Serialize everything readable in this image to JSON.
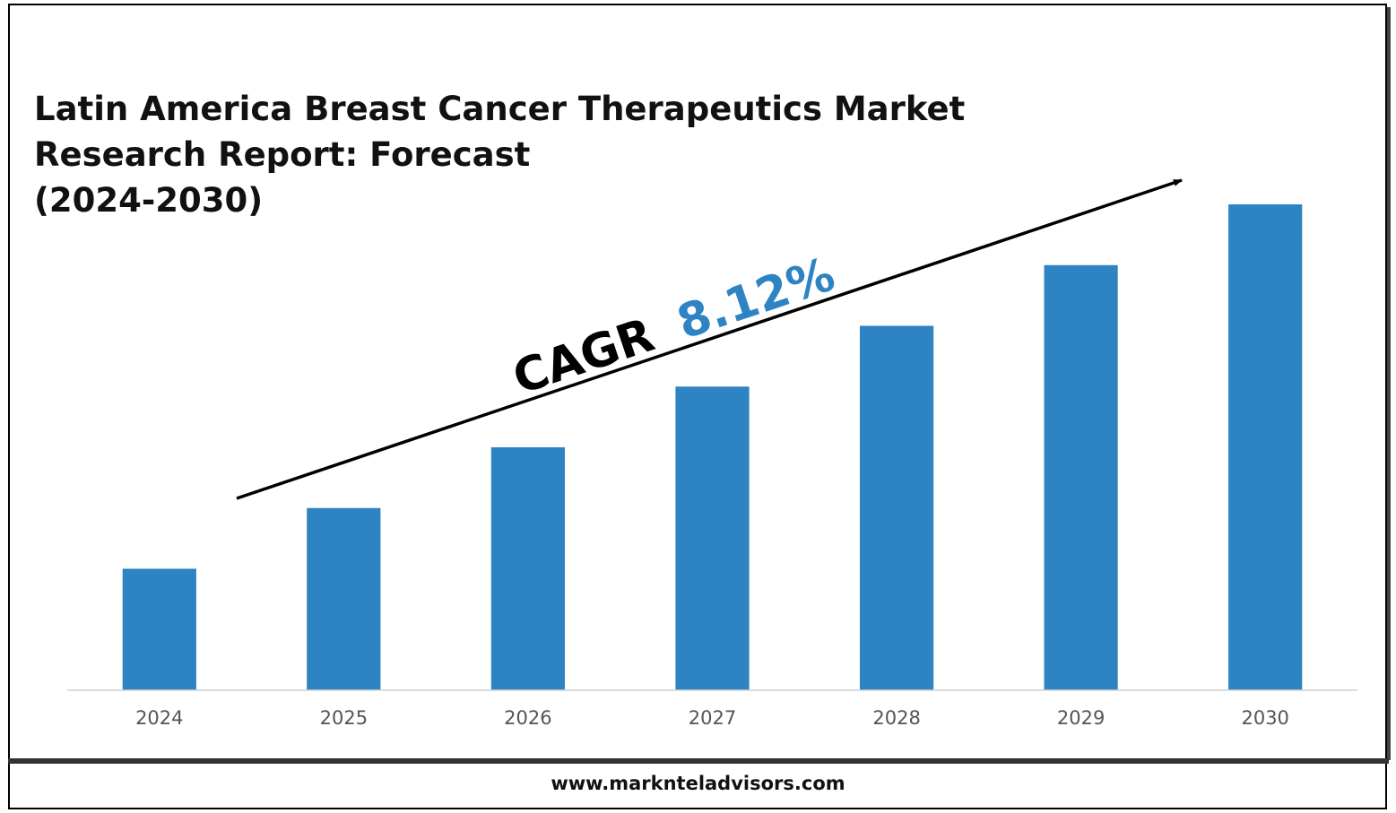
{
  "chart_data": {
    "type": "bar",
    "title_lines": [
      "Latin America Breast Cancer Therapeutics Market",
      "Research Report: Forecast",
      "(2024-2030)"
    ],
    "categories": [
      "2024",
      "2025",
      "2026",
      "2027",
      "2028",
      "2029",
      "2030"
    ],
    "values": [
      1.0,
      1.5,
      2.0,
      2.5,
      3.0,
      3.5,
      4.0
    ],
    "ylim": [
      0,
      4.0
    ],
    "xlabel": "",
    "ylabel": "",
    "grid": false,
    "legend": "none",
    "bar_color": "#2e83c3",
    "annotation": {
      "prefix": "CAGR",
      "value": "8.12%",
      "prefix_color": "#000000",
      "value_color": "#2e83c3"
    }
  },
  "footer": {
    "url": "www.marknteladvisors.com"
  }
}
